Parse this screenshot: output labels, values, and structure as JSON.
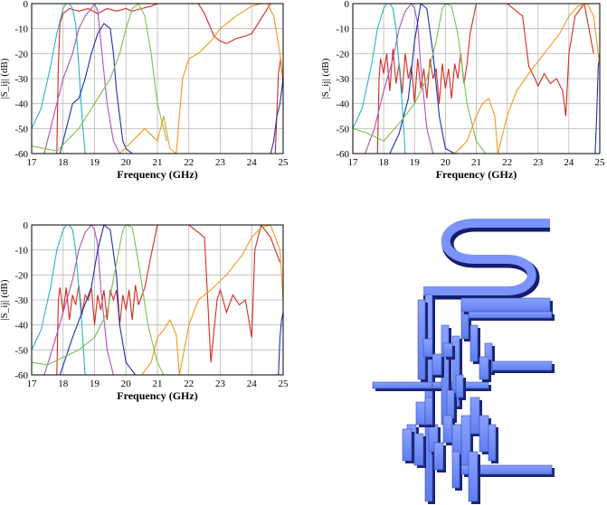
{
  "colors": {
    "red": "#d42a1f",
    "cyan": "#1fb8c2",
    "magenta": "#b04fc0",
    "blue": "#1f2fae",
    "green": "#7ac24a",
    "orange": "#f09a1c",
    "grid": "#b8b8b8"
  },
  "chart_data": [
    {
      "type": "line",
      "xlabel": "Frequency (GHz)",
      "ylabel": "|S_ij| (dB)",
      "xlim": [
        17,
        25
      ],
      "ylim": [
        -60,
        0
      ],
      "xticks": [
        "17",
        "18",
        "19",
        "20",
        "21",
        "22",
        "23",
        "24",
        "25"
      ],
      "yticks": [
        "0",
        "-10",
        "-20",
        "-30",
        "-40",
        "-50",
        "-60"
      ],
      "grid": true,
      "series": [
        {
          "color": "red",
          "x": [
            17.8,
            17.85,
            17.9,
            18.0,
            18.2,
            18.5,
            18.8,
            19.1,
            19.4,
            19.7,
            20.0,
            20.2,
            20.5,
            20.8,
            21.0,
            21.5,
            22.0,
            22.3,
            22.5,
            22.8,
            23.0,
            23.2,
            23.5,
            23.8,
            24.0,
            24.3,
            24.6
          ],
          "y": [
            -60,
            -25,
            -8,
            -4,
            -2,
            -3,
            -2,
            -4,
            -2,
            -3,
            -2,
            -3,
            -2,
            -1,
            0,
            0,
            0,
            0,
            -4,
            -13,
            -15,
            -16,
            -14,
            -13,
            -12,
            -6,
            0
          ]
        },
        {
          "color": "red",
          "x": [
            24.75,
            24.85,
            24.92,
            25.0
          ],
          "y": [
            -60,
            -28,
            -22,
            -32
          ]
        },
        {
          "color": "cyan",
          "x": [
            17.0,
            17.3,
            17.6,
            17.8,
            18.0,
            18.1,
            18.2,
            18.3,
            18.4,
            18.5,
            18.6,
            18.7
          ],
          "y": [
            -50,
            -42,
            -25,
            -12,
            -2,
            0,
            0,
            -2,
            -8,
            -25,
            -45,
            -60
          ]
        },
        {
          "color": "magenta",
          "x": [
            17.4,
            17.7,
            18.0,
            18.3,
            18.5,
            18.7,
            18.9,
            19.0,
            19.1,
            19.2,
            19.4,
            19.6,
            19.8
          ],
          "y": [
            -60,
            -45,
            -30,
            -20,
            -10,
            -5,
            -2,
            0,
            -3,
            -15,
            -40,
            -55,
            -60
          ]
        },
        {
          "color": "blue",
          "x": [
            17.9,
            18.0,
            18.3,
            18.5,
            18.7,
            18.9,
            19.1,
            19.3,
            19.5,
            19.6,
            19.7,
            19.8,
            19.9,
            20.0,
            20.2
          ],
          "y": [
            -60,
            -55,
            -40,
            -38,
            -30,
            -20,
            -12,
            -8,
            -10,
            -20,
            -35,
            -45,
            -55,
            -58,
            -60
          ]
        },
        {
          "color": "blue",
          "x": [
            24.6,
            24.7,
            24.8,
            24.9,
            25.0
          ],
          "y": [
            -60,
            -55,
            -45,
            -40,
            -30
          ]
        },
        {
          "color": "green",
          "x": [
            17.0,
            17.8,
            18.5,
            19.0,
            19.5,
            19.8,
            20.0,
            20.2,
            20.4,
            20.6,
            20.8,
            21.0,
            21.3
          ],
          "y": [
            -57,
            -59,
            -50,
            -40,
            -30,
            -20,
            -10,
            -2,
            0,
            -5,
            -20,
            -40,
            -55
          ]
        },
        {
          "color": "orange",
          "x": [
            19.8,
            20.2,
            20.6,
            21.0,
            21.2,
            21.4,
            21.6,
            21.8,
            22.0,
            22.3,
            22.7,
            23.0,
            23.5,
            24.0,
            24.3,
            24.5,
            24.7,
            24.9,
            25.0
          ],
          "y": [
            -60,
            -55,
            -50,
            -55,
            -45,
            -58,
            -60,
            -30,
            -22,
            -20,
            -15,
            -10,
            -5,
            -1,
            0,
            0,
            -5,
            -20,
            -30
          ]
        }
      ]
    },
    {
      "type": "line",
      "xlabel": "Frequency (GHz)",
      "ylabel": "|S_ij| (dB)",
      "xlim": [
        17,
        25
      ],
      "ylim": [
        -60,
        0
      ],
      "xticks": [
        "17",
        "18",
        "19",
        "20",
        "21",
        "22",
        "23",
        "24",
        "25"
      ],
      "yticks": [
        "0",
        "-10",
        "-20",
        "-30",
        "-40",
        "-50",
        "-60"
      ],
      "grid": true,
      "series": [
        {
          "color": "red",
          "x": [
            17.8,
            17.85,
            17.9,
            18.0,
            18.1,
            18.2,
            18.3,
            18.4,
            18.5,
            18.6,
            18.7,
            18.8,
            18.9,
            19.0,
            19.1,
            19.2,
            19.3,
            19.4,
            19.5,
            19.6,
            19.7,
            19.8,
            19.9,
            20.0,
            20.1,
            20.2,
            20.3,
            20.4,
            20.5,
            20.6,
            20.7,
            20.8,
            21.0,
            21.5,
            22.0,
            22.5,
            22.7,
            22.9,
            23.0,
            23.2,
            23.4,
            23.6,
            23.8,
            23.9,
            24.0,
            24.2,
            24.5,
            24.8
          ],
          "y": [
            -60,
            -30,
            -22,
            -28,
            -20,
            -35,
            -18,
            -32,
            -24,
            -36,
            -20,
            -30,
            -25,
            -40,
            -22,
            -34,
            -26,
            -38,
            -22,
            -30,
            -26,
            -40,
            -24,
            -34,
            -26,
            -38,
            -24,
            -30,
            -20,
            -32,
            -24,
            -12,
            0,
            0,
            0,
            -5,
            -25,
            -30,
            -33,
            -28,
            -32,
            -30,
            -35,
            -45,
            -20,
            -5,
            0,
            -20
          ]
        },
        {
          "color": "cyan",
          "x": [
            17.0,
            17.3,
            17.6,
            17.8,
            18.0,
            18.1,
            18.2,
            18.3,
            18.4,
            18.6,
            18.7
          ],
          "y": [
            -50,
            -42,
            -25,
            -10,
            -2,
            0,
            0,
            -2,
            -10,
            -40,
            -60
          ]
        },
        {
          "color": "magenta",
          "x": [
            17.4,
            17.7,
            18.0,
            18.3,
            18.5,
            18.7,
            18.9,
            19.0,
            19.1,
            19.2,
            19.4,
            19.6
          ],
          "y": [
            -60,
            -50,
            -35,
            -22,
            -10,
            -3,
            0,
            -2,
            -8,
            -25,
            -50,
            -60
          ]
        },
        {
          "color": "blue",
          "x": [
            18.2,
            18.5,
            18.8,
            19.0,
            19.2,
            19.4,
            19.6,
            19.8,
            20.0,
            20.3
          ],
          "y": [
            -60,
            -52,
            -38,
            -15,
            0,
            -2,
            -20,
            -45,
            -58,
            -60
          ]
        },
        {
          "color": "blue",
          "x": [
            24.85,
            24.9,
            24.95,
            25.0
          ],
          "y": [
            -60,
            -45,
            -25,
            -20
          ]
        },
        {
          "color": "green",
          "x": [
            17.0,
            17.5,
            18.0,
            18.5,
            19.0,
            19.4,
            19.7,
            19.9,
            20.0,
            20.2,
            20.4,
            20.7,
            21.0,
            21.3
          ],
          "y": [
            -50,
            -52,
            -55,
            -48,
            -40,
            -30,
            -15,
            -2,
            0,
            -1,
            -12,
            -40,
            -55,
            -60
          ]
        },
        {
          "color": "orange",
          "x": [
            20.3,
            20.7,
            21.0,
            21.2,
            21.4,
            21.6,
            21.7,
            22.0,
            22.3,
            22.7,
            23.2,
            23.7,
            24.0,
            24.3,
            24.6,
            24.8,
            25.0
          ],
          "y": [
            -60,
            -55,
            -45,
            -40,
            -38,
            -45,
            -60,
            -45,
            -35,
            -28,
            -20,
            -12,
            -5,
            -1,
            0,
            -5,
            -25
          ]
        }
      ]
    },
    {
      "type": "line",
      "xlabel": "Frequency (GHz)",
      "ylabel": "|S_ij| (dB)",
      "xlim": [
        17,
        25
      ],
      "ylim": [
        -60,
        0
      ],
      "xticks": [
        "17",
        "18",
        "19",
        "20",
        "21",
        "22",
        "23",
        "24",
        "25"
      ],
      "yticks": [
        "0",
        "-10",
        "-20",
        "-30",
        "-40",
        "-50",
        "-60"
      ],
      "grid": true,
      "series": [
        {
          "color": "red",
          "x": [
            17.8,
            17.85,
            17.9,
            18.0,
            18.1,
            18.2,
            18.3,
            18.4,
            18.5,
            18.6,
            18.7,
            18.8,
            18.9,
            19.0,
            19.1,
            19.2,
            19.3,
            19.4,
            19.5,
            19.6,
            19.7,
            19.8,
            19.9,
            20.0,
            20.1,
            20.2,
            20.3,
            20.4,
            20.6,
            20.8,
            21.0,
            21.5,
            22.0,
            22.5,
            22.7,
            22.9,
            23.0,
            23.2,
            23.4,
            23.6,
            23.8,
            24.0,
            24.1,
            24.3,
            24.6,
            24.9
          ],
          "y": [
            -60,
            -30,
            -25,
            -35,
            -25,
            -38,
            -28,
            -32,
            -24,
            -36,
            -28,
            -30,
            -25,
            -40,
            -28,
            -34,
            -26,
            -38,
            -26,
            -30,
            -26,
            -40,
            -28,
            -34,
            -26,
            -38,
            -24,
            -32,
            -25,
            -12,
            0,
            0,
            0,
            -5,
            -55,
            -30,
            -26,
            -35,
            -28,
            -32,
            -30,
            -45,
            -10,
            0,
            -5,
            -15
          ]
        },
        {
          "color": "cyan",
          "x": [
            17.0,
            17.3,
            17.6,
            17.8,
            18.0,
            18.1,
            18.2,
            18.3,
            18.4,
            18.6,
            18.7
          ],
          "y": [
            -50,
            -42,
            -25,
            -10,
            -2,
            0,
            0,
            -2,
            -10,
            -40,
            -60
          ]
        },
        {
          "color": "magenta",
          "x": [
            17.4,
            17.7,
            18.0,
            18.3,
            18.5,
            18.7,
            18.9,
            19.0,
            19.1,
            19.2,
            19.4,
            19.6
          ],
          "y": [
            -60,
            -48,
            -35,
            -22,
            -10,
            -3,
            0,
            -2,
            -8,
            -25,
            -50,
            -60
          ]
        },
        {
          "color": "blue",
          "x": [
            17.9,
            18.3,
            18.6,
            18.9,
            19.1,
            19.3,
            19.5,
            19.7,
            19.8,
            20.0,
            20.3
          ],
          "y": [
            -60,
            -45,
            -35,
            -25,
            -10,
            0,
            -2,
            -20,
            -40,
            -55,
            -60
          ]
        },
        {
          "color": "blue",
          "x": [
            24.85,
            24.9,
            24.95,
            25.0
          ],
          "y": [
            -60,
            -45,
            -38,
            -35
          ]
        },
        {
          "color": "green",
          "x": [
            17.0,
            17.5,
            18.0,
            18.5,
            19.0,
            19.4,
            19.7,
            19.9,
            20.0,
            20.2,
            20.4,
            20.7,
            21.0,
            21.2
          ],
          "y": [
            -55,
            -56,
            -53,
            -50,
            -45,
            -35,
            -15,
            -2,
            0,
            -1,
            -15,
            -40,
            -55,
            -60
          ]
        },
        {
          "color": "orange",
          "x": [
            20.5,
            20.8,
            21.0,
            21.2,
            21.4,
            21.6,
            21.7,
            22.0,
            22.3,
            22.7,
            23.2,
            23.7,
            24.0,
            24.3,
            24.6,
            24.9,
            25.0
          ],
          "y": [
            -60,
            -55,
            -45,
            -42,
            -38,
            -44,
            -60,
            -40,
            -30,
            -26,
            -20,
            -12,
            -5,
            -1,
            0,
            -10,
            -30
          ]
        }
      ]
    }
  ]
}
